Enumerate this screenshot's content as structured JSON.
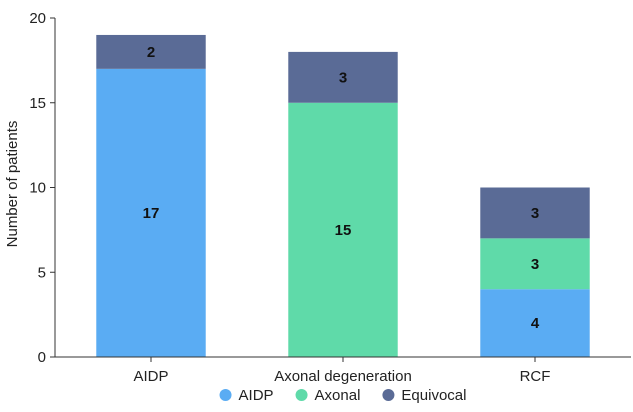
{
  "chart_data": {
    "type": "bar",
    "stacked": true,
    "categories": [
      "AIDP",
      "Axonal degeneration",
      "RCF"
    ],
    "series": [
      {
        "name": "AIDP",
        "color": "#5aacf3",
        "values": [
          17,
          0,
          4
        ]
      },
      {
        "name": "Axonal",
        "color": "#5fdaa9",
        "values": [
          0,
          15,
          3
        ]
      },
      {
        "name": "Equivocal",
        "color": "#5a6b96",
        "values": [
          2,
          3,
          3
        ]
      }
    ],
    "xlabel": "",
    "ylabel": "Number of patients",
    "ylim": [
      0,
      20
    ],
    "yticks": [
      0,
      5,
      10,
      15,
      20
    ],
    "grid": false,
    "legend_position": "bottom-center"
  }
}
